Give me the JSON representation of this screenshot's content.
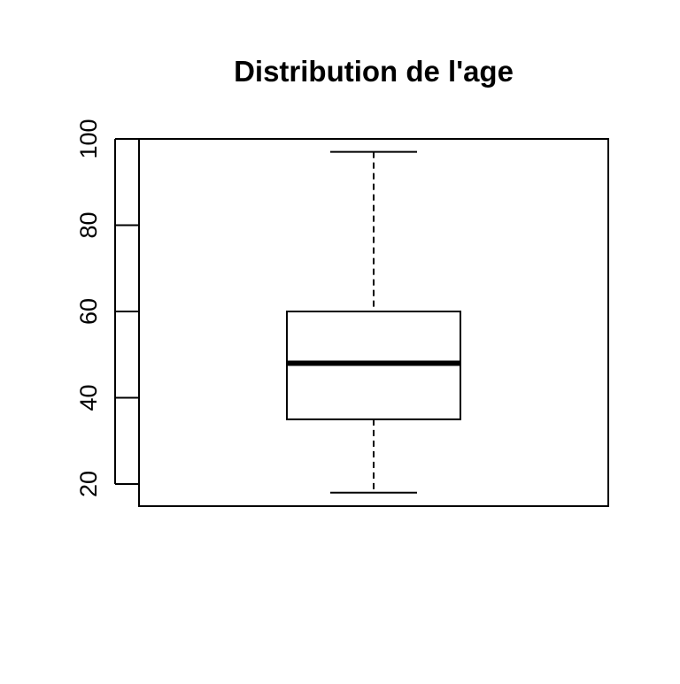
{
  "chart_data": {
    "type": "boxplot",
    "title": "Distribution de l'age",
    "xlabel": "",
    "ylabel": "",
    "ylim": [
      15,
      100
    ],
    "yticks": [
      20,
      40,
      60,
      80,
      100
    ],
    "box": {
      "whisker_low": 18,
      "q1": 35,
      "median": 48,
      "q3": 60,
      "whisker_high": 97
    },
    "grid": false,
    "legend": "none",
    "colors": {
      "box_fill": "#ffffff",
      "stroke": "#000000"
    }
  }
}
